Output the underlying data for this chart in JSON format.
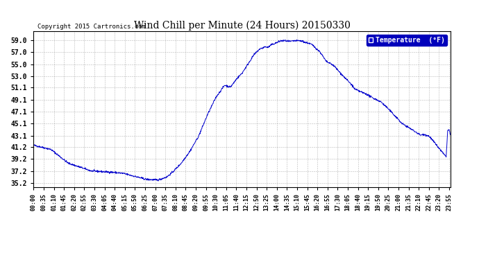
{
  "title": "Wind Chill per Minute (24 Hours) 20150330",
  "copyright": "Copyright 2015 Cartronics.com",
  "legend_label": "Temperature  (°F)",
  "line_color": "#0000cc",
  "background_color": "#ffffff",
  "plot_bg_color": "#ffffff",
  "grid_color": "#888888",
  "yticks": [
    35.2,
    37.2,
    39.2,
    41.2,
    43.1,
    45.1,
    47.1,
    49.1,
    51.1,
    53.0,
    55.0,
    57.0,
    59.0
  ],
  "ymin": 34.5,
  "ymax": 60.5,
  "xtick_labels": [
    "00:00",
    "00:35",
    "01:10",
    "01:45",
    "02:20",
    "02:55",
    "03:30",
    "04:05",
    "04:40",
    "05:15",
    "05:50",
    "06:25",
    "07:00",
    "07:35",
    "08:10",
    "08:45",
    "09:20",
    "09:55",
    "10:30",
    "11:05",
    "11:40",
    "12:15",
    "12:50",
    "13:25",
    "14:00",
    "14:35",
    "15:10",
    "15:45",
    "16:20",
    "16:55",
    "17:30",
    "18:05",
    "18:40",
    "19:15",
    "19:50",
    "20:25",
    "21:00",
    "21:35",
    "22:10",
    "22:45",
    "23:20",
    "23:55"
  ],
  "key_points": [
    [
      0,
      41.5
    ],
    [
      60,
      40.8
    ],
    [
      120,
      38.5
    ],
    [
      200,
      37.2
    ],
    [
      270,
      37.0
    ],
    [
      310,
      36.8
    ],
    [
      390,
      35.8
    ],
    [
      430,
      35.7
    ],
    [
      460,
      36.2
    ],
    [
      480,
      37.0
    ],
    [
      510,
      38.5
    ],
    [
      540,
      40.5
    ],
    [
      570,
      43.0
    ],
    [
      600,
      46.5
    ],
    [
      630,
      49.5
    ],
    [
      660,
      51.5
    ],
    [
      680,
      51.2
    ],
    [
      690,
      51.8
    ],
    [
      700,
      52.5
    ],
    [
      720,
      53.5
    ],
    [
      740,
      55.0
    ],
    [
      760,
      56.5
    ],
    [
      780,
      57.5
    ],
    [
      800,
      57.9
    ],
    [
      810,
      57.8
    ],
    [
      820,
      58.2
    ],
    [
      840,
      58.6
    ],
    [
      855,
      58.9
    ],
    [
      870,
      58.9
    ],
    [
      880,
      58.8
    ],
    [
      890,
      58.8
    ],
    [
      900,
      58.9
    ],
    [
      910,
      58.9
    ],
    [
      920,
      58.9
    ],
    [
      930,
      58.8
    ],
    [
      940,
      58.6
    ],
    [
      950,
      58.5
    ],
    [
      960,
      58.3
    ],
    [
      970,
      57.9
    ],
    [
      990,
      57.0
    ],
    [
      1010,
      55.5
    ],
    [
      1020,
      55.2
    ],
    [
      1030,
      55.0
    ],
    [
      1040,
      54.6
    ],
    [
      1060,
      53.5
    ],
    [
      1080,
      52.5
    ],
    [
      1100,
      51.5
    ],
    [
      1110,
      50.8
    ],
    [
      1115,
      50.7
    ],
    [
      1120,
      50.6
    ],
    [
      1125,
      50.5
    ],
    [
      1130,
      50.4
    ],
    [
      1140,
      50.2
    ],
    [
      1150,
      50.0
    ],
    [
      1160,
      49.7
    ],
    [
      1170,
      49.4
    ],
    [
      1180,
      49.2
    ],
    [
      1200,
      48.7
    ],
    [
      1220,
      47.8
    ],
    [
      1240,
      46.8
    ],
    [
      1260,
      45.8
    ],
    [
      1270,
      45.2
    ],
    [
      1275,
      45.0
    ],
    [
      1280,
      44.9
    ],
    [
      1290,
      44.6
    ],
    [
      1300,
      44.3
    ],
    [
      1310,
      44.0
    ],
    [
      1320,
      43.7
    ],
    [
      1330,
      43.4
    ],
    [
      1335,
      43.2
    ],
    [
      1340,
      43.2
    ],
    [
      1345,
      43.3
    ],
    [
      1350,
      43.3
    ],
    [
      1355,
      43.2
    ],
    [
      1360,
      43.1
    ],
    [
      1365,
      43.0
    ],
    [
      1370,
      42.8
    ],
    [
      1375,
      42.5
    ],
    [
      1380,
      42.2
    ],
    [
      1385,
      41.9
    ],
    [
      1390,
      41.6
    ],
    [
      1395,
      41.3
    ],
    [
      1400,
      41.0
    ],
    [
      1405,
      40.7
    ],
    [
      1410,
      40.4
    ],
    [
      1415,
      40.1
    ],
    [
      1420,
      39.8
    ],
    [
      1425,
      39.7
    ],
    [
      1430,
      43.9
    ],
    [
      1435,
      44.1
    ],
    [
      1439,
      43.2
    ]
  ]
}
